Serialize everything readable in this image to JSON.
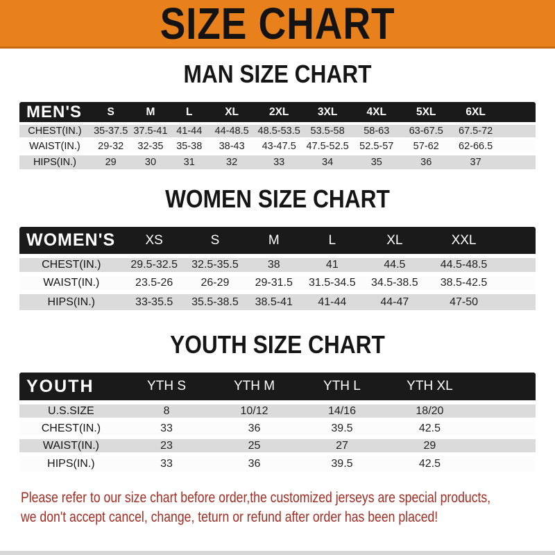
{
  "banner": {
    "title": "SIZE CHART"
  },
  "sections": [
    {
      "title": "MAN SIZE CHART",
      "table": {
        "header_label": "MEN'S",
        "columns": [
          "S",
          "M",
          "L",
          "XL",
          "2XL",
          "3XL",
          "4XL",
          "5XL",
          "6XL"
        ],
        "rows": [
          {
            "label": "CHEST(IN.)",
            "values": [
              "35-37.5",
              "37.5-41",
              "41-44",
              "44-48.5",
              "48.5-53.5",
              "53.5-58",
              "58-63",
              "63-67.5",
              "67.5-72"
            ]
          },
          {
            "label": "WAIST(IN.)",
            "values": [
              "29-32",
              "32-35",
              "35-38",
              "38-43",
              "43-47.5",
              "47.5-52.5",
              "52.5-57",
              "57-62",
              "62-66.5"
            ]
          },
          {
            "label": "HIPS(IN.)",
            "values": [
              "29",
              "30",
              "31",
              "32",
              "33",
              "34",
              "35",
              "36",
              "37"
            ]
          }
        ]
      }
    },
    {
      "title": "WOMEN SIZE CHART",
      "table": {
        "header_label": "WOMEN'S",
        "columns": [
          "XS",
          "S",
          "M",
          "L",
          "XL",
          "XXL"
        ],
        "rows": [
          {
            "label": "CHEST(IN.)",
            "values": [
              "29.5-32.5",
              "32.5-35.5",
              "38",
              "41",
              "44.5",
              "44.5-48.5"
            ]
          },
          {
            "label": "WAIST(IN.)",
            "values": [
              "23.5-26",
              "26-29",
              "29-31.5",
              "31.5-34.5",
              "34.5-38.5",
              "38.5-42.5"
            ]
          },
          {
            "label": "HIPS(IN.)",
            "values": [
              "33-35.5",
              "35.5-38.5",
              "38.5-41",
              "41-44",
              "44-47",
              "47-50"
            ]
          }
        ]
      }
    },
    {
      "title": "YOUTH SIZE CHART",
      "table": {
        "header_label": "YOUTH",
        "columns": [
          "YTH S",
          "YTH M",
          "YTH L",
          "YTH XL"
        ],
        "rows": [
          {
            "label": "U.S.SIZE",
            "values": [
              "8",
              "10/12",
              "14/16",
              "18/20"
            ]
          },
          {
            "label": "CHEST(IN.)",
            "values": [
              "33",
              "36",
              "39.5",
              "42.5"
            ]
          },
          {
            "label": "WAIST(IN.)",
            "values": [
              "23",
              "25",
              "27",
              "29"
            ]
          },
          {
            "label": "HIPS(IN.)",
            "values": [
              "33",
              "36",
              "39.5",
              "42.5"
            ]
          }
        ]
      }
    }
  ],
  "footer": {
    "line1": "Please refer to our size chart before order,the customized jerseys are special products,",
    "line2": "we don't accept cancel, change, teturn or refund after order has been placed!"
  },
  "colors": {
    "banner_bg": "#E8811B",
    "banner_edge": "#C76A10",
    "bar_bg": "#1A1A1A",
    "row_alt_bg": "#DBDBDB",
    "footer_text": "#A42B20"
  }
}
